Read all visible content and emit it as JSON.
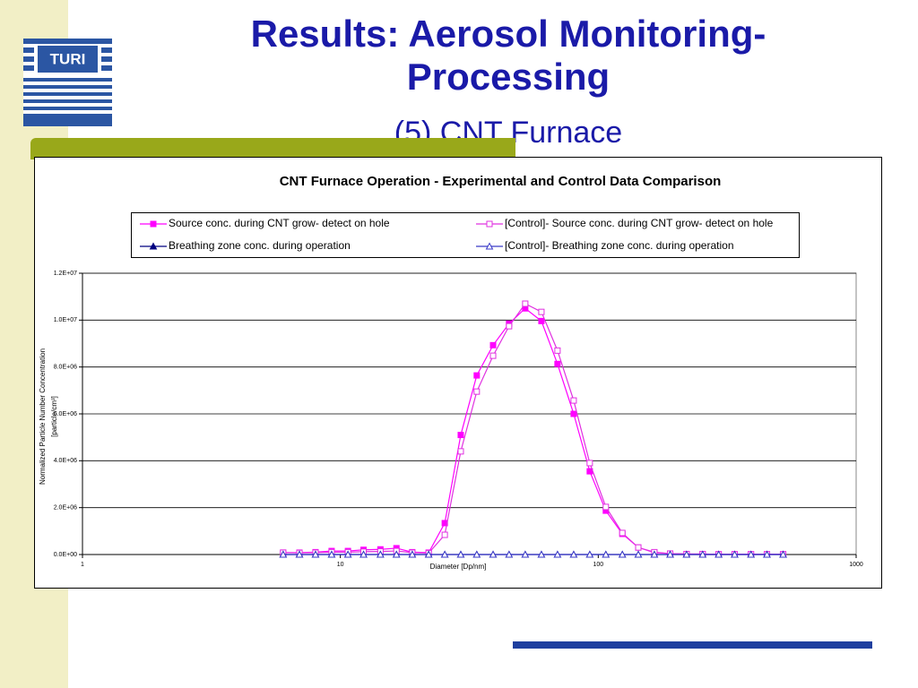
{
  "logo": "TURI",
  "title": "Results: Aerosol Monitoring-Processing",
  "subtitle": "(5) CNT Furnace",
  "chart_data": {
    "type": "line",
    "title": "CNT Furnace Operation - Experimental and Control Data Comparison",
    "x_label": "Diameter [Dp/nm]",
    "y_label": [
      "Normalized Particle Number  Concentration",
      "[particle/cm³]"
    ],
    "xscale": "log",
    "xlim": [
      1,
      1000
    ],
    "xticks": [
      1,
      10,
      100,
      1000
    ],
    "ylim": [
      0,
      12000000
    ],
    "yticks": [
      {
        "value": 0,
        "label": "0.0E+00"
      },
      {
        "value": 2000000,
        "label": "2.0E+06"
      },
      {
        "value": 4000000,
        "label": "4.0E+06"
      },
      {
        "value": 6000000,
        "label": "6.0E+06"
      },
      {
        "value": 8000000,
        "label": "8.0E+06"
      },
      {
        "value": 10000000,
        "label": "1.0E+07"
      },
      {
        "value": 12000000,
        "label": "1.2E+07"
      }
    ],
    "grid": true,
    "x": [
      6.0,
      6.94,
      8.01,
      9.25,
      10.7,
      12.3,
      14.3,
      16.5,
      19.0,
      22.0,
      25.4,
      29.3,
      33.8,
      39.1,
      45.1,
      52.1,
      60.2,
      69.5,
      80.3,
      92.7,
      107,
      124,
      143,
      165,
      190,
      220,
      254,
      293,
      338,
      391,
      451,
      521
    ],
    "series": [
      {
        "name": "Source conc. during CNT grow- detect on hole",
        "color": "#ff00ff",
        "marker": "square",
        "values": [
          80000,
          80000,
          100000,
          150000,
          150000,
          200000,
          220000,
          270000,
          100000,
          80000,
          1340000,
          5100000,
          7640000,
          8930000,
          9850000,
          10500000,
          9960000,
          8130000,
          6000000,
          3550000,
          1870000,
          880000,
          300000,
          80000,
          40000,
          20000,
          20000,
          10000,
          10000,
          10000,
          10000,
          10000
        ]
      },
      {
        "name": "[Control]- Source conc. during CNT grow- detect on hole",
        "color": "#e030e0",
        "marker": "square-open",
        "values": [
          80000,
          70000,
          80000,
          100000,
          100000,
          120000,
          130000,
          150000,
          80000,
          60000,
          840000,
          4400000,
          6950000,
          8480000,
          9740000,
          10700000,
          10350000,
          8700000,
          6570000,
          3900000,
          2030000,
          920000,
          300000,
          100000,
          40000,
          20000,
          20000,
          10000,
          10000,
          10000,
          10000,
          10000
        ]
      },
      {
        "name": "Breathing zone conc. during operation",
        "color": "#000080",
        "marker": "triangle",
        "values": [
          0,
          0,
          0,
          0,
          0,
          0,
          0,
          0,
          0,
          0,
          0,
          0,
          0,
          0,
          0,
          0,
          0,
          0,
          0,
          0,
          0,
          0,
          0,
          0,
          0,
          0,
          0,
          0,
          0,
          0,
          0,
          0
        ]
      },
      {
        "name": "[Control]- Breathing zone conc. during operation",
        "color": "#3a3ac8",
        "marker": "triangle-open",
        "values": [
          0,
          0,
          0,
          0,
          0,
          0,
          0,
          0,
          0,
          0,
          0,
          0,
          0,
          0,
          0,
          0,
          0,
          0,
          0,
          0,
          0,
          0,
          0,
          0,
          0,
          0,
          0,
          0,
          0,
          0,
          0,
          0
        ]
      }
    ]
  }
}
